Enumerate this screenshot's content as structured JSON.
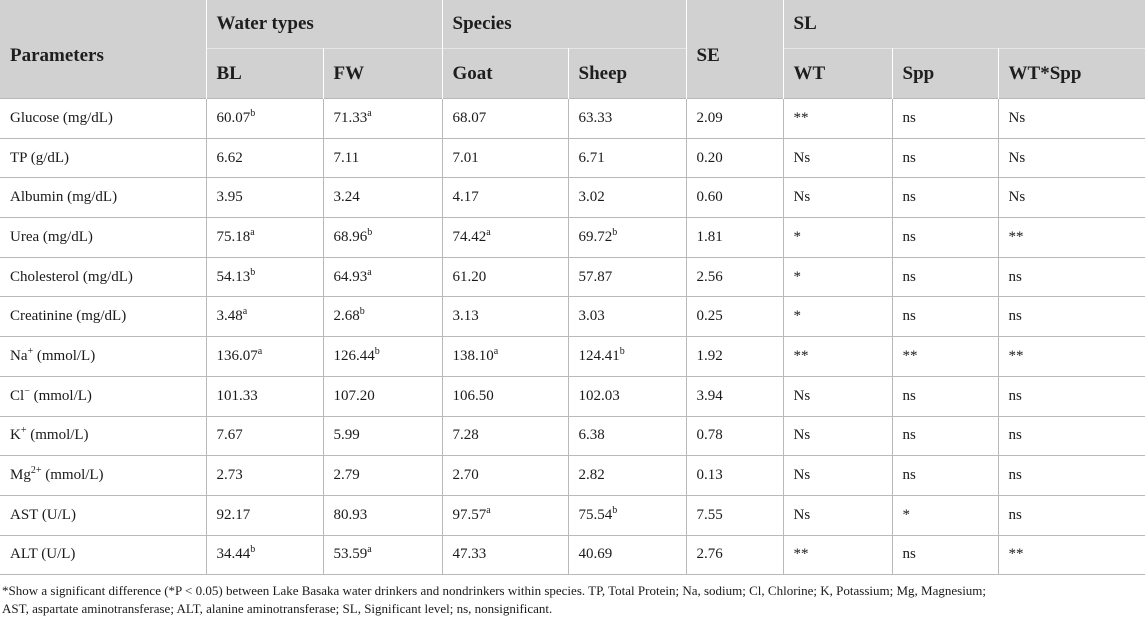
{
  "header": {
    "parameters": "Parameters",
    "water_types": "Water types",
    "species": "Species",
    "se": "SE",
    "sl": "SL",
    "bl": "BL",
    "fw": "FW",
    "goat": "Goat",
    "sheep": "Sheep",
    "wt": "WT",
    "spp": "Spp",
    "wt_spp": "WT*Spp"
  },
  "rows": [
    {
      "param": "Glucose (mg/dL)",
      "param_sup": "",
      "param_tail": "",
      "bl": "60.07",
      "bl_sup": "b",
      "fw": "71.33",
      "fw_sup": "a",
      "goat": "68.07",
      "goat_sup": "",
      "sheep": "63.33",
      "sheep_sup": "",
      "se": "2.09",
      "wt": "**",
      "spp": "ns",
      "wtspp": "Ns"
    },
    {
      "param": "TP (g/dL)",
      "param_sup": "",
      "param_tail": "",
      "bl": "6.62",
      "bl_sup": "",
      "fw": "7.11",
      "fw_sup": "",
      "goat": "7.01",
      "goat_sup": "",
      "sheep": "6.71",
      "sheep_sup": "",
      "se": "0.20",
      "wt": "Ns",
      "spp": "ns",
      "wtspp": "Ns"
    },
    {
      "param": "Albumin (mg/dL)",
      "param_sup": "",
      "param_tail": "",
      "bl": "3.95",
      "bl_sup": "",
      "fw": "3.24",
      "fw_sup": "",
      "goat": "4.17",
      "goat_sup": "",
      "sheep": "3.02",
      "sheep_sup": "",
      "se": "0.60",
      "wt": "Ns",
      "spp": "ns",
      "wtspp": "Ns"
    },
    {
      "param": "Urea (mg/dL)",
      "param_sup": "",
      "param_tail": "",
      "bl": "75.18",
      "bl_sup": "a",
      "fw": "68.96",
      "fw_sup": "b",
      "goat": "74.42",
      "goat_sup": "a",
      "sheep": "69.72",
      "sheep_sup": "b",
      "se": "1.81",
      "wt": "*",
      "spp": "ns",
      "wtspp": "**"
    },
    {
      "param": "Cholesterol (mg/dL)",
      "param_sup": "",
      "param_tail": "",
      "bl": "54.13",
      "bl_sup": "b",
      "fw": "64.93",
      "fw_sup": "a",
      "goat": "61.20",
      "goat_sup": "",
      "sheep": "57.87",
      "sheep_sup": "",
      "se": "2.56",
      "wt": "*",
      "spp": "ns",
      "wtspp": "ns"
    },
    {
      "param": "Creatinine (mg/dL)",
      "param_sup": "",
      "param_tail": "",
      "bl": "3.48",
      "bl_sup": "a",
      "fw": "2.68",
      "fw_sup": "b",
      "goat": "3.13",
      "goat_sup": "",
      "sheep": "3.03",
      "sheep_sup": "",
      "se": "0.25",
      "wt": "*",
      "spp": "ns",
      "wtspp": "ns"
    },
    {
      "param": "Na",
      "param_sup": "+",
      "param_tail": " (mmol/L)",
      "bl": "136.07",
      "bl_sup": "a",
      "fw": "126.44",
      "fw_sup": "b",
      "goat": "138.10",
      "goat_sup": "a",
      "sheep": "124.41",
      "sheep_sup": "b",
      "se": "1.92",
      "wt": "**",
      "spp": "**",
      "wtspp": "**"
    },
    {
      "param": "Cl",
      "param_sup": "−",
      "param_tail": " (mmol/L)",
      "bl": "101.33",
      "bl_sup": "",
      "fw": "107.20",
      "fw_sup": "",
      "goat": "106.50",
      "goat_sup": "",
      "sheep": "102.03",
      "sheep_sup": "",
      "se": "3.94",
      "wt": "Ns",
      "spp": "ns",
      "wtspp": "ns"
    },
    {
      "param": "K",
      "param_sup": "+",
      "param_tail": " (mmol/L)",
      "bl": "7.67",
      "bl_sup": "",
      "fw": "5.99",
      "fw_sup": "",
      "goat": "7.28",
      "goat_sup": "",
      "sheep": "6.38",
      "sheep_sup": "",
      "se": "0.78",
      "wt": "Ns",
      "spp": "ns",
      "wtspp": "ns"
    },
    {
      "param": "Mg",
      "param_sup": "2+",
      "param_tail": " (mmol/L)",
      "bl": "2.73",
      "bl_sup": "",
      "fw": "2.79",
      "fw_sup": "",
      "goat": "2.70",
      "goat_sup": "",
      "sheep": "2.82",
      "sheep_sup": "",
      "se": "0.13",
      "wt": "Ns",
      "spp": "ns",
      "wtspp": "ns"
    },
    {
      "param": "AST (U/L)",
      "param_sup": "",
      "param_tail": "",
      "bl": "92.17",
      "bl_sup": "",
      "fw": "80.93",
      "fw_sup": "",
      "goat": "97.57",
      "goat_sup": "a",
      "sheep": "75.54",
      "sheep_sup": "b",
      "se": "7.55",
      "wt": "Ns",
      "spp": "*",
      "wtspp": "ns"
    },
    {
      "param": "ALT (U/L)",
      "param_sup": "",
      "param_tail": "",
      "bl": "34.44",
      "bl_sup": "b",
      "fw": "53.59",
      "fw_sup": "a",
      "goat": "47.33",
      "goat_sup": "",
      "sheep": "40.69",
      "sheep_sup": "",
      "se": "2.76",
      "wt": "**",
      "spp": "ns",
      "wtspp": "**"
    }
  ],
  "footnote": {
    "line1": "*Show a significant difference (*P < 0.05) between Lake Basaka water drinkers and nondrinkers within species. TP, Total Protein; Na, sodium; Cl, Chlorine; K, Potassium; Mg, Magnesium;",
    "line2": "AST, aspartate aminotransferase; ALT, alanine aminotransferase; SL, Significant level; ns, nonsignificant."
  },
  "colors": {
    "header_bg": "#d1d1d1",
    "grid_line": "#b9b9b9"
  }
}
